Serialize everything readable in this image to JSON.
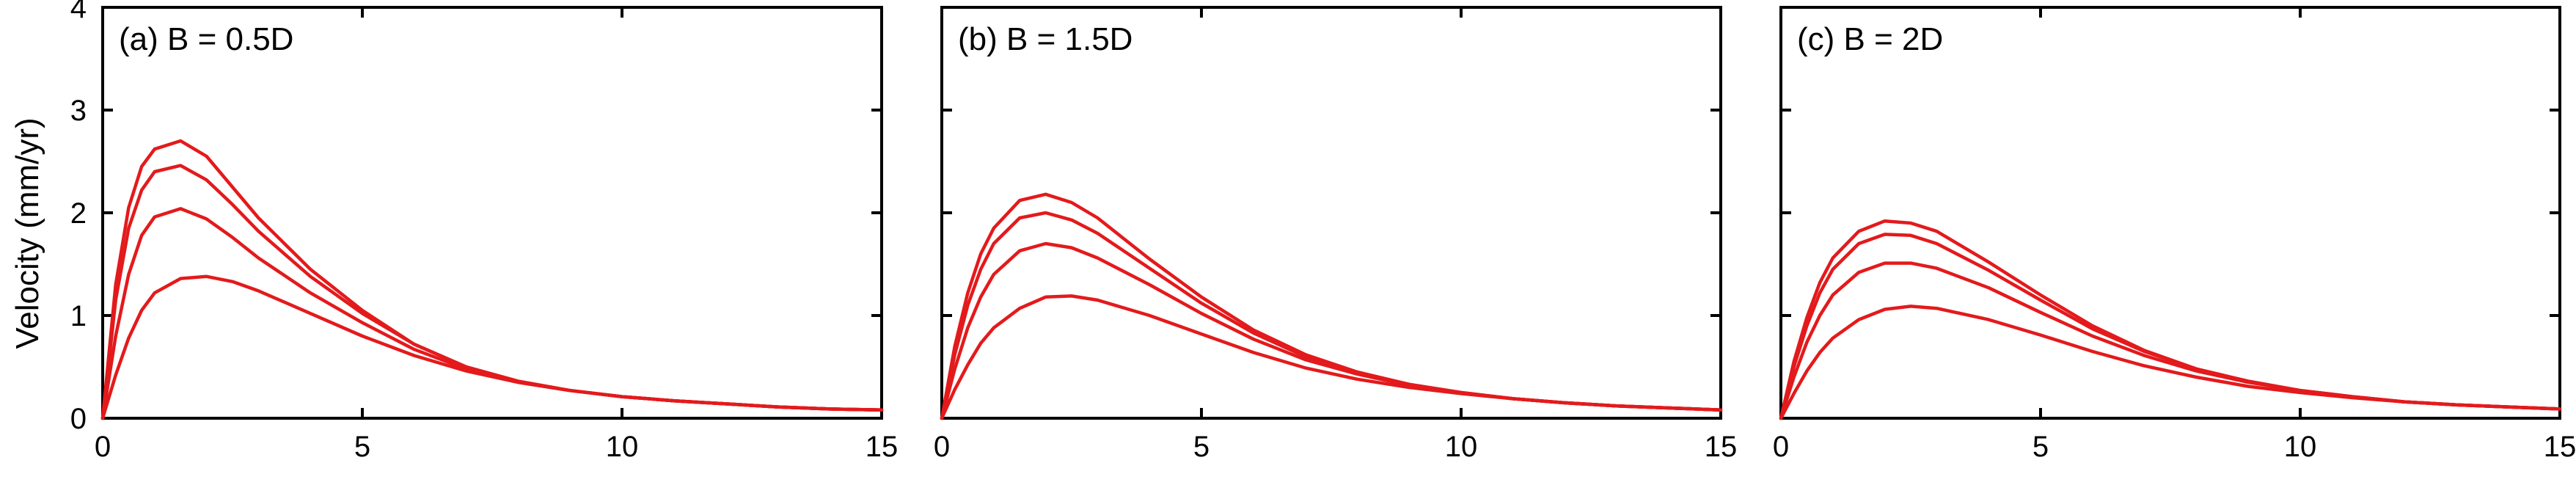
{
  "ylabel": "Velocity (mm/yr)",
  "chart_data": [
    {
      "type": "line",
      "title": "(a) B = 0.5D",
      "xlim": [
        0,
        15
      ],
      "ylim": [
        0,
        4
      ],
      "xticks": [
        0,
        5,
        10,
        15
      ],
      "yticks": [
        0,
        1,
        2,
        3,
        4
      ],
      "color": "#e31a1c",
      "x": [
        0,
        0.25,
        0.5,
        0.75,
        1,
        1.5,
        2,
        2.5,
        3,
        4,
        5,
        6,
        7,
        8,
        9,
        10,
        11,
        12,
        13,
        14,
        15
      ],
      "series": [
        {
          "values": [
            0,
            1.3,
            2.05,
            2.45,
            2.62,
            2.7,
            2.55,
            2.25,
            1.95,
            1.45,
            1.05,
            0.72,
            0.5,
            0.36,
            0.27,
            0.21,
            0.17,
            0.14,
            0.11,
            0.09,
            0.08
          ]
        },
        {
          "values": [
            0,
            1.15,
            1.85,
            2.22,
            2.4,
            2.46,
            2.32,
            2.08,
            1.82,
            1.38,
            1.02,
            0.72,
            0.5,
            0.36,
            0.27,
            0.21,
            0.17,
            0.14,
            0.11,
            0.09,
            0.08
          ]
        },
        {
          "values": [
            0,
            0.8,
            1.4,
            1.78,
            1.96,
            2.04,
            1.94,
            1.76,
            1.56,
            1.22,
            0.93,
            0.67,
            0.48,
            0.35,
            0.27,
            0.21,
            0.17,
            0.14,
            0.11,
            0.09,
            0.08
          ]
        },
        {
          "values": [
            0,
            0.42,
            0.78,
            1.05,
            1.22,
            1.36,
            1.38,
            1.33,
            1.24,
            1.02,
            0.8,
            0.61,
            0.46,
            0.35,
            0.27,
            0.21,
            0.17,
            0.14,
            0.11,
            0.09,
            0.08
          ]
        }
      ]
    },
    {
      "type": "line",
      "title": "(b) B = 1.5D",
      "xlim": [
        0,
        15
      ],
      "ylim": [
        0,
        4
      ],
      "xticks": [
        0,
        5,
        10,
        15
      ],
      "yticks": [
        0,
        1,
        2,
        3,
        4
      ],
      "color": "#e31a1c",
      "x": [
        0,
        0.25,
        0.5,
        0.75,
        1,
        1.5,
        2,
        2.5,
        3,
        4,
        5,
        6,
        7,
        8,
        9,
        10,
        11,
        12,
        13,
        14,
        15
      ],
      "series": [
        {
          "values": [
            0,
            0.7,
            1.22,
            1.6,
            1.85,
            2.12,
            2.18,
            2.1,
            1.95,
            1.55,
            1.18,
            0.86,
            0.62,
            0.45,
            0.33,
            0.25,
            0.19,
            0.15,
            0.12,
            0.1,
            0.08
          ]
        },
        {
          "values": [
            0,
            0.62,
            1.1,
            1.45,
            1.7,
            1.95,
            2.0,
            1.93,
            1.8,
            1.46,
            1.12,
            0.83,
            0.6,
            0.44,
            0.33,
            0.25,
            0.19,
            0.15,
            0.12,
            0.1,
            0.08
          ]
        },
        {
          "values": [
            0,
            0.48,
            0.88,
            1.18,
            1.4,
            1.63,
            1.7,
            1.66,
            1.56,
            1.3,
            1.02,
            0.77,
            0.57,
            0.43,
            0.32,
            0.25,
            0.19,
            0.15,
            0.12,
            0.1,
            0.08
          ]
        },
        {
          "values": [
            0,
            0.28,
            0.52,
            0.73,
            0.88,
            1.07,
            1.18,
            1.19,
            1.15,
            1.0,
            0.82,
            0.64,
            0.49,
            0.38,
            0.3,
            0.24,
            0.19,
            0.15,
            0.12,
            0.1,
            0.08
          ]
        }
      ]
    },
    {
      "type": "line",
      "title": "(c) B = 2D",
      "xlim": [
        0,
        15
      ],
      "ylim": [
        0,
        4
      ],
      "xticks": [
        0,
        5,
        10,
        15
      ],
      "yticks": [
        0,
        1,
        2,
        3,
        4
      ],
      "color": "#e31a1c",
      "x": [
        0,
        0.25,
        0.5,
        0.75,
        1,
        1.5,
        2,
        2.5,
        3,
        4,
        5,
        6,
        7,
        8,
        9,
        10,
        11,
        12,
        13,
        14,
        15
      ],
      "series": [
        {
          "values": [
            0,
            0.55,
            0.98,
            1.32,
            1.56,
            1.82,
            1.92,
            1.9,
            1.82,
            1.52,
            1.2,
            0.9,
            0.66,
            0.48,
            0.36,
            0.27,
            0.21,
            0.16,
            0.13,
            0.11,
            0.09
          ]
        },
        {
          "values": [
            0,
            0.5,
            0.9,
            1.22,
            1.45,
            1.7,
            1.79,
            1.78,
            1.7,
            1.44,
            1.15,
            0.87,
            0.65,
            0.48,
            0.36,
            0.27,
            0.21,
            0.16,
            0.13,
            0.11,
            0.09
          ]
        },
        {
          "values": [
            0,
            0.4,
            0.74,
            1.0,
            1.2,
            1.42,
            1.51,
            1.51,
            1.46,
            1.27,
            1.03,
            0.8,
            0.61,
            0.46,
            0.35,
            0.27,
            0.21,
            0.16,
            0.13,
            0.11,
            0.09
          ]
        },
        {
          "values": [
            0,
            0.24,
            0.46,
            0.64,
            0.78,
            0.96,
            1.06,
            1.09,
            1.07,
            0.96,
            0.81,
            0.65,
            0.51,
            0.4,
            0.31,
            0.25,
            0.2,
            0.16,
            0.13,
            0.11,
            0.09
          ]
        }
      ]
    }
  ]
}
